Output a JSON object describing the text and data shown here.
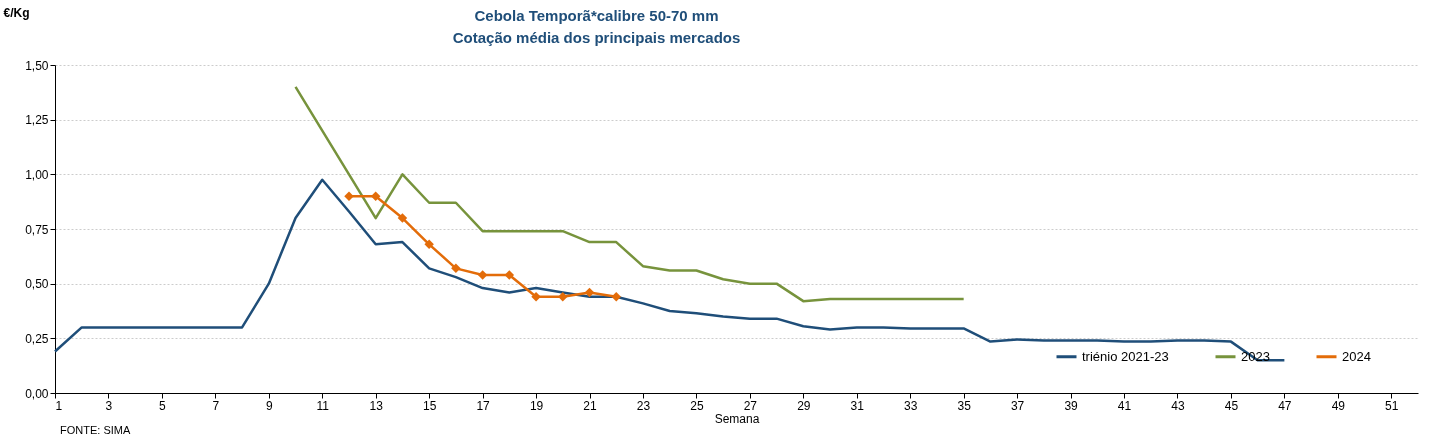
{
  "chart_data": {
    "type": "line",
    "title": "Cebola Temporã*calibre 50-70 mm",
    "subtitle": "Cotação média dos principais mercados",
    "xlabel": "Semana",
    "ylabel": "€/Kg",
    "annotations": [
      "FONTE: SIMA"
    ],
    "xlim": [
      1,
      52
    ],
    "xticks": [
      1,
      3,
      5,
      7,
      9,
      11,
      13,
      15,
      17,
      19,
      21,
      23,
      25,
      27,
      29,
      31,
      33,
      35,
      37,
      39,
      41,
      43,
      45,
      47,
      49,
      51
    ],
    "ylim": [
      0,
      1.5
    ],
    "yticks": [
      {
        "value": 0,
        "label": "0,00"
      },
      {
        "value": 0.25,
        "label": "0,25"
      },
      {
        "value": 0.5,
        "label": "0,50"
      },
      {
        "value": 0.75,
        "label": "0,75"
      },
      {
        "value": 1,
        "label": "1,00"
      },
      {
        "value": 1.25,
        "label": "1,25"
      },
      {
        "value": 1.5,
        "label": "1,50"
      }
    ],
    "grid": "y",
    "legend": "bottom right",
    "line_style": "solid",
    "series": [
      {
        "name": "triénio 2021-23",
        "color": "#1f4e79",
        "marker": "none",
        "x": [
          1,
          2,
          3,
          4,
          5,
          6,
          7,
          8,
          9,
          10,
          11,
          12,
          13,
          14,
          15,
          16,
          17,
          18,
          19,
          20,
          21,
          22,
          23,
          24,
          25,
          26,
          27,
          28,
          29,
          30,
          31,
          32,
          33,
          34,
          35,
          36,
          37,
          38,
          39,
          40,
          41,
          42,
          43,
          44,
          45,
          46,
          47
        ],
        "values": [
          0.19,
          0.3,
          0.3,
          0.3,
          0.3,
          0.3,
          0.3,
          0.3,
          0.5,
          0.8,
          0.975,
          0.83,
          0.68,
          0.69,
          0.57,
          0.53,
          0.48,
          0.46,
          0.48,
          0.46,
          0.44,
          0.44,
          0.41,
          0.375,
          0.365,
          0.35,
          0.34,
          0.34,
          0.305,
          0.29,
          0.3,
          0.3,
          0.295,
          0.295,
          0.295,
          0.235,
          0.245,
          0.24,
          0.24,
          0.24,
          0.235,
          0.235,
          0.24,
          0.24,
          0.235,
          0.15,
          0.15
        ]
      },
      {
        "name": "2023",
        "color": "#77933c",
        "marker": "none",
        "x": [
          10,
          11,
          12,
          13,
          14,
          15,
          16,
          17,
          18,
          19,
          20,
          21,
          22,
          23,
          24,
          25,
          26,
          27,
          28,
          29,
          30,
          31,
          32,
          33,
          34,
          35
        ],
        "values": [
          1.4,
          1.2,
          1.0,
          0.8,
          1.0,
          0.87,
          0.87,
          0.74,
          0.74,
          0.74,
          0.74,
          0.69,
          0.69,
          0.58,
          0.56,
          0.56,
          0.52,
          0.5,
          0.5,
          0.42,
          0.43,
          0.43,
          0.43,
          0.43,
          0.43,
          0.43
        ]
      },
      {
        "name": "2024",
        "color": "#e36c09",
        "marker": "diamond",
        "x": [
          12,
          13,
          14,
          15,
          16,
          17,
          18,
          19,
          20,
          21,
          22
        ],
        "values": [
          0.9,
          0.9,
          0.8,
          0.68,
          0.57,
          0.54,
          0.54,
          0.44,
          0.44,
          0.46,
          0.44
        ]
      }
    ]
  }
}
